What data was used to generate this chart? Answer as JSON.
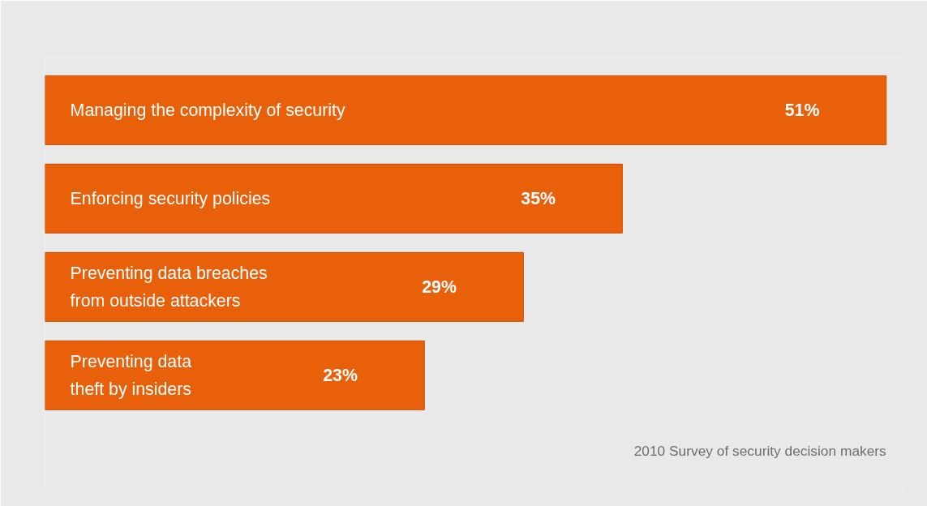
{
  "chart_data": {
    "type": "bar",
    "orientation": "horizontal",
    "categories": [
      "Managing the complexity of security",
      "Enforcing security policies",
      "Preventing data breaches\nfrom outside attackers",
      "Preventing data\ntheft by insiders"
    ],
    "values": [
      51,
      35,
      29,
      23
    ],
    "value_labels": [
      "51%",
      "35%",
      "29%",
      "23%"
    ],
    "color": "#e8600a",
    "annotations": [
      "2010 Survey of security decision makers"
    ]
  }
}
